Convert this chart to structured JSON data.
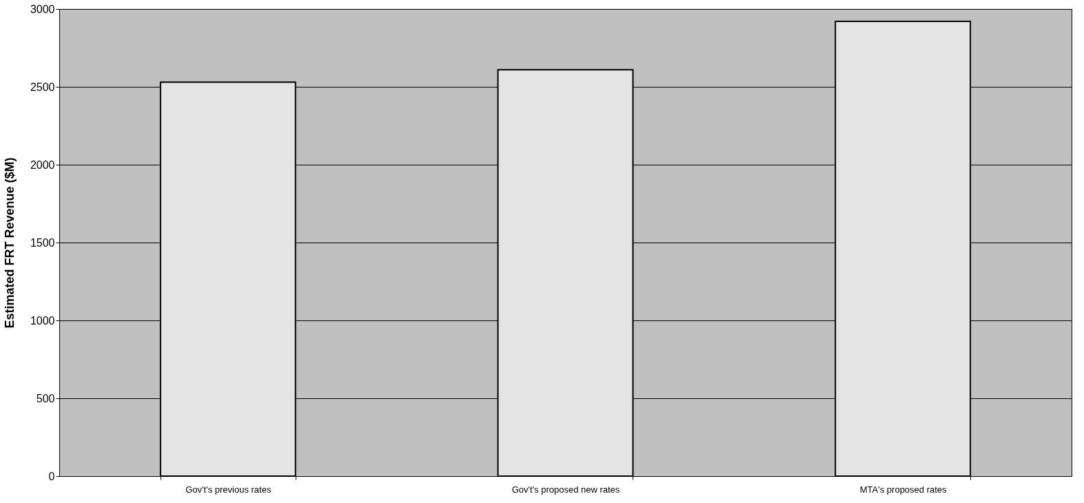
{
  "chart_data": {
    "type": "bar",
    "ylabel": "Estimated FRT Revenue ($M)",
    "categories": [
      "Gov't's previous rates",
      "Gov't's proposed new rates",
      "MTA's proposed rates"
    ],
    "values": [
      2530,
      2610,
      2920
    ],
    "color": "#e4e4e4",
    "ylim": [
      0,
      3000
    ],
    "yticks": [
      0,
      500,
      1000,
      1500,
      2000,
      2500,
      3000
    ],
    "grid": "y",
    "legend": false
  }
}
